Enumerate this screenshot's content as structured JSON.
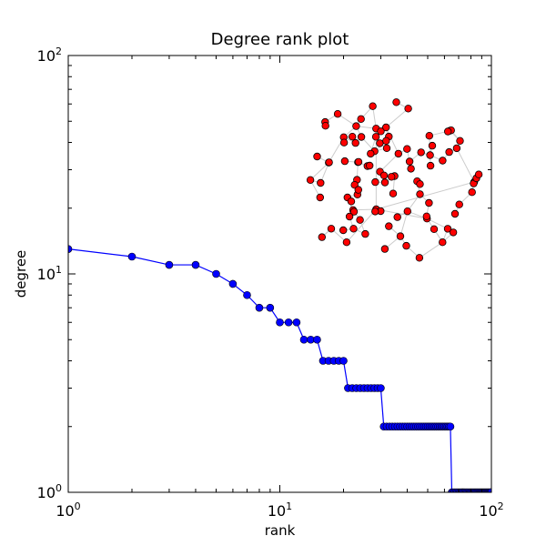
{
  "chart_data": {
    "type": "line",
    "title": "Degree rank plot",
    "xlabel": "rank",
    "ylabel": "degree",
    "xscale": "log",
    "yscale": "log",
    "xlim": [
      1,
      100
    ],
    "ylim": [
      1,
      100
    ],
    "grid": false,
    "x_ticks": [
      {
        "base": "10",
        "exp": "0",
        "value": 1
      },
      {
        "base": "10",
        "exp": "1",
        "value": 10
      },
      {
        "base": "10",
        "exp": "2",
        "value": 100
      }
    ],
    "y_ticks": [
      {
        "base": "10",
        "exp": "0",
        "value": 1
      },
      {
        "base": "10",
        "exp": "1",
        "value": 10
      },
      {
        "base": "10",
        "exp": "2",
        "value": 100
      }
    ],
    "series": [
      {
        "color": "#0000ff",
        "marker": "circle",
        "values": [
          13,
          12,
          11,
          11,
          10,
          9,
          8,
          7,
          7,
          6,
          6,
          6,
          5,
          5,
          5,
          4,
          4,
          4,
          4,
          4,
          3,
          3,
          3,
          3,
          3,
          3,
          3,
          3,
          3,
          3,
          2,
          2,
          2,
          2,
          2,
          2,
          2,
          2,
          2,
          2,
          2,
          2,
          2,
          2,
          2,
          2,
          2,
          2,
          2,
          2,
          2,
          2,
          2,
          2,
          2,
          2,
          2,
          2,
          2,
          2,
          2,
          2,
          2,
          2,
          1,
          1,
          1,
          1,
          1,
          1,
          1,
          1,
          1,
          1,
          1,
          1,
          1,
          1,
          1,
          1,
          1,
          1,
          1,
          1,
          1,
          1,
          1,
          1,
          1,
          1,
          1,
          1,
          1,
          1,
          1,
          1,
          1,
          1,
          1,
          1
        ]
      }
    ],
    "inset_graph": {
      "type": "network",
      "node_color": "#ff0000",
      "node_edge_color": "#000000",
      "edge_color": "#cccccc",
      "node_count": 100
    }
  }
}
